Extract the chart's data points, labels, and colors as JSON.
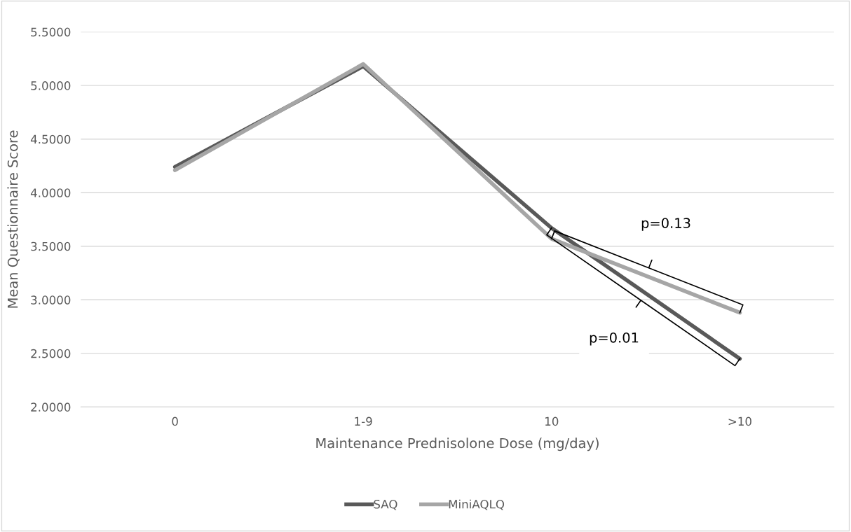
{
  "chart_data": {
    "type": "line",
    "xlabel": "Maintenance Prednisolone Dose (mg/day)",
    "ylabel": "Mean Questionnaire Score",
    "categories": [
      "0",
      "1-9",
      "10",
      ">10"
    ],
    "series": [
      {
        "name": "SAQ",
        "color": "#595959",
        "values": [
          4.24,
          5.18,
          3.67,
          2.45
        ]
      },
      {
        "name": "MiniAQLQ",
        "color": "#a6a6a6",
        "values": [
          4.21,
          5.2,
          3.57,
          2.88
        ]
      }
    ],
    "ylim": [
      2.0,
      5.5
    ],
    "yticks": [
      {
        "value": 2.0,
        "label": "2.0000"
      },
      {
        "value": 2.5,
        "label": "2.5000"
      },
      {
        "value": 3.0,
        "label": "3.0000"
      },
      {
        "value": 3.5,
        "label": "3.5000"
      },
      {
        "value": 4.0,
        "label": "4.0000"
      },
      {
        "value": 4.5,
        "label": "4.5000"
      },
      {
        "value": 5.0,
        "label": "5.0000"
      },
      {
        "value": 5.5,
        "label": "5.5000"
      }
    ],
    "grid": "y",
    "legend": "bottom",
    "marker": "none",
    "line_style": "solid",
    "annotations": [
      "p=0.13",
      "p=0.01"
    ]
  }
}
